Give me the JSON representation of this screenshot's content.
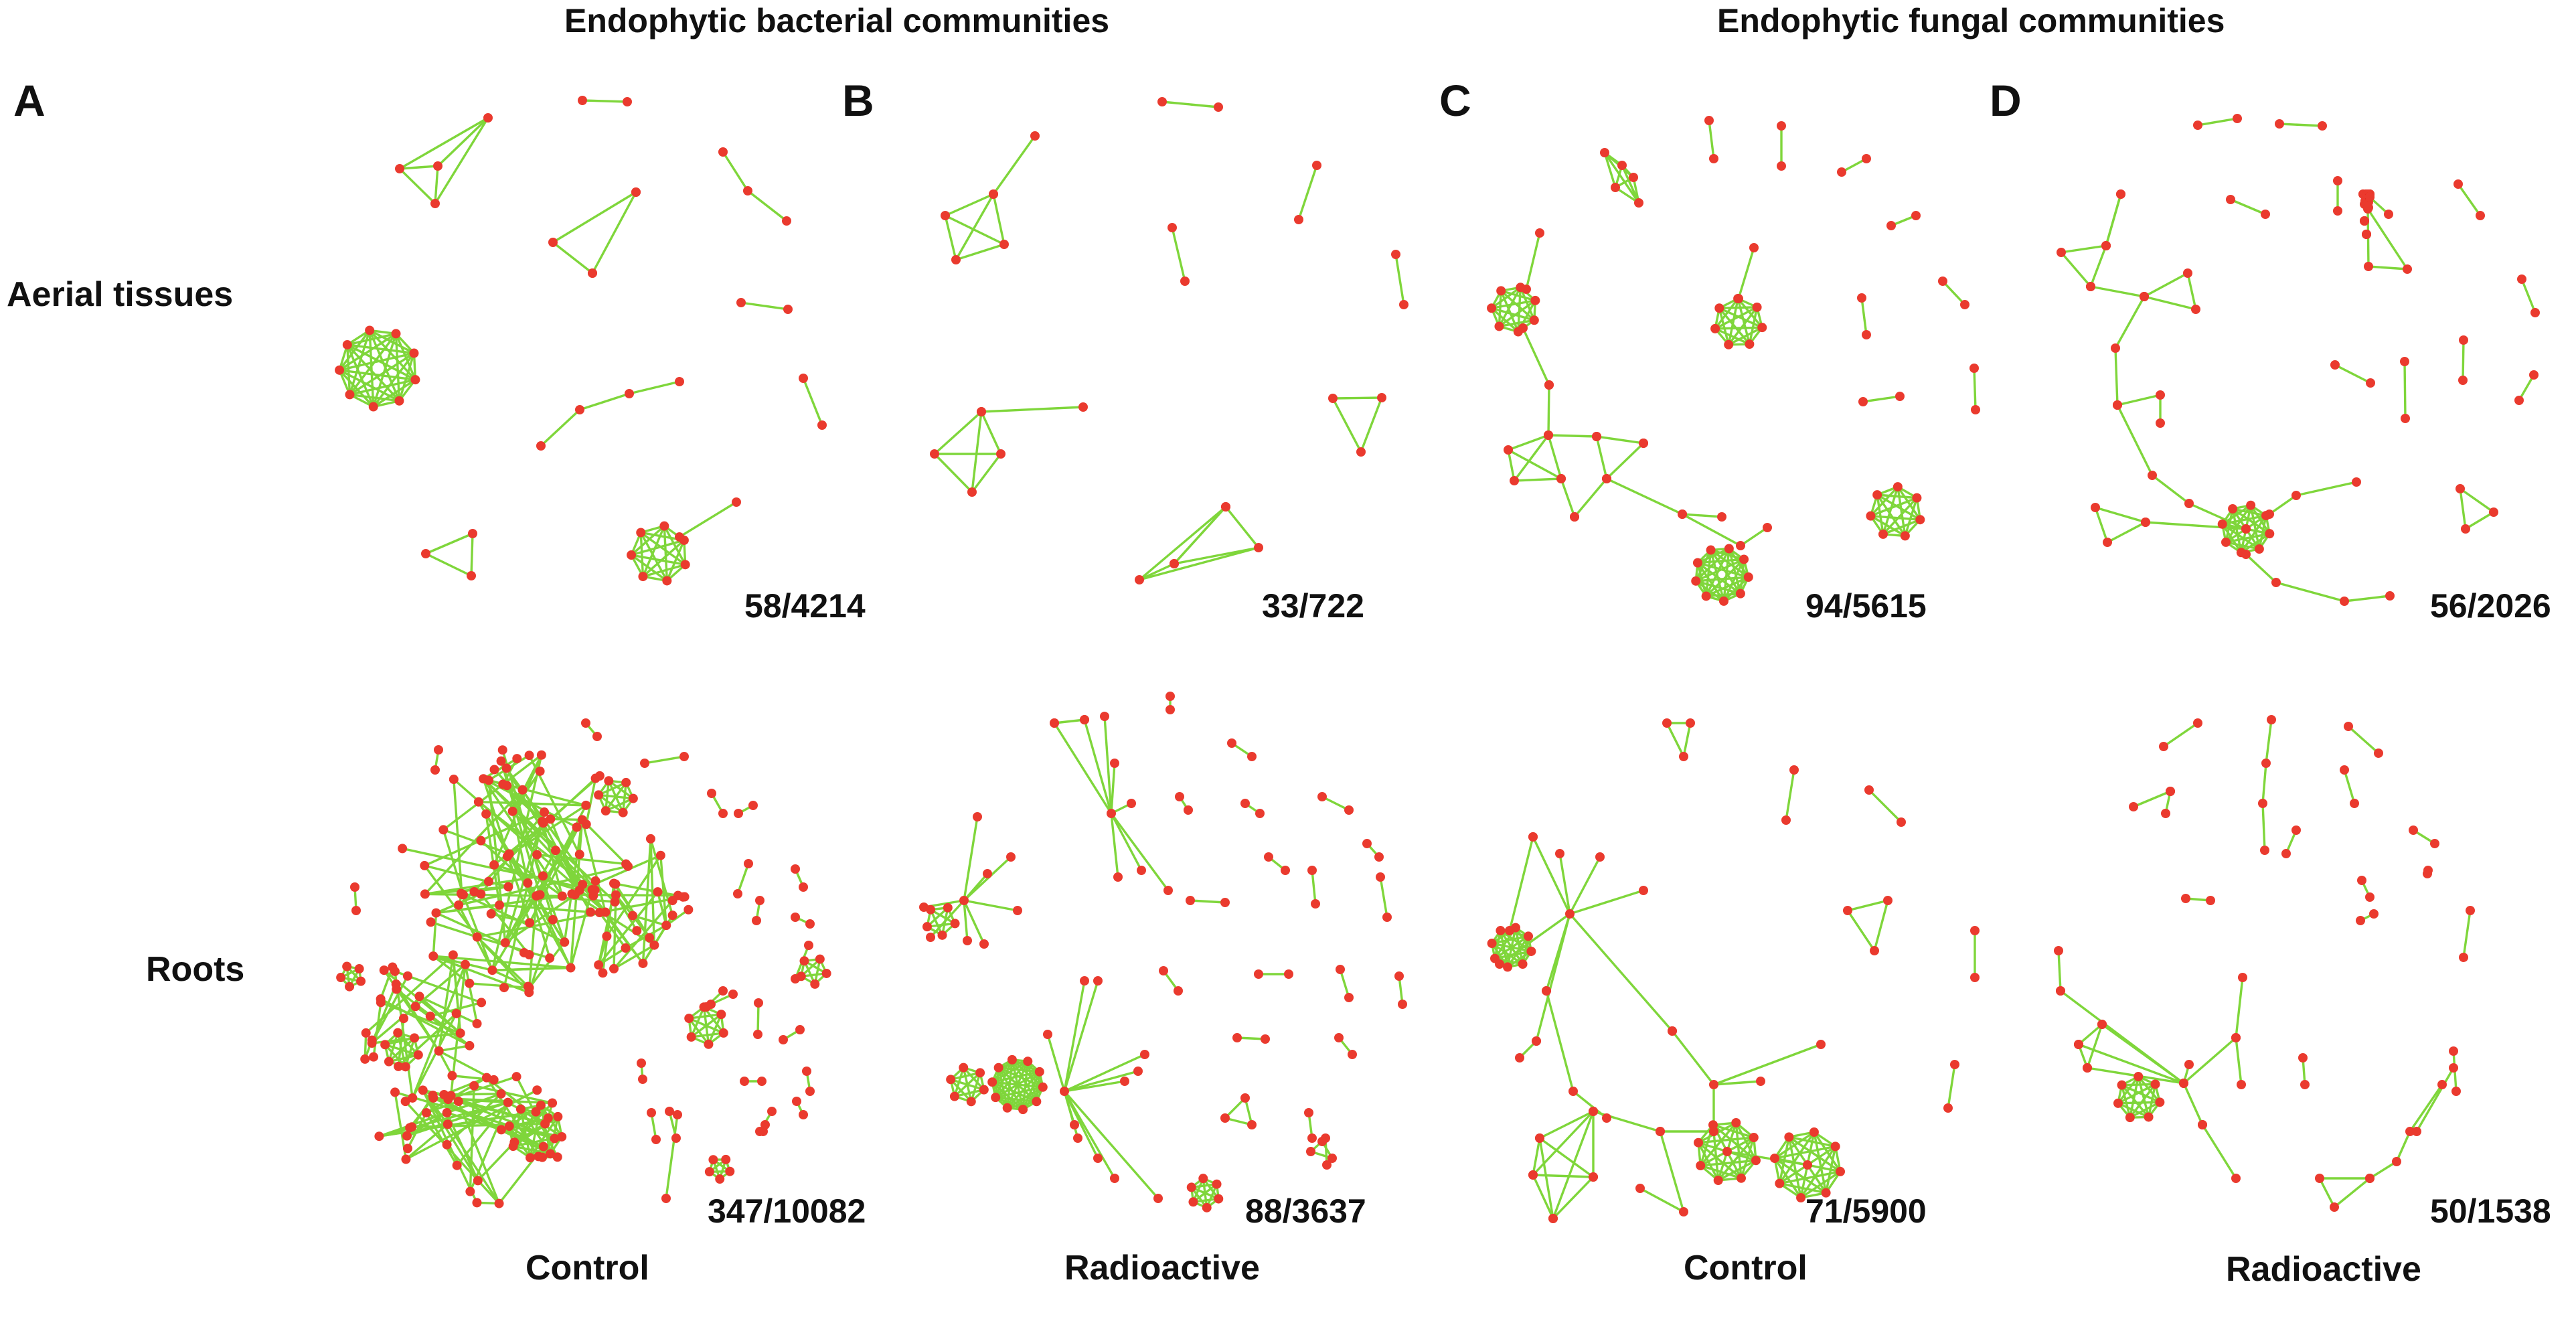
{
  "figure": {
    "groups": {
      "bacterial": "Endophytic bacterial communities",
      "fungal": "Endophytic fungal communities"
    },
    "panels": [
      "A",
      "B",
      "C",
      "D"
    ],
    "rows": {
      "aerial": "Aerial tissues",
      "roots": "Roots"
    },
    "columns": [
      "Control",
      "Radioactive",
      "Control",
      "Radioactive"
    ],
    "counts": {
      "A_aerial": "58/4214",
      "B_aerial": "33/722",
      "C_aerial": "94/5615",
      "D_aerial": "56/2026",
      "A_roots": "347/10082",
      "B_roots": "88/3637",
      "C_roots": "71/5900",
      "D_roots": "50/1538"
    }
  },
  "colors": {
    "edge": "#7fd63b",
    "node": "#ea3a2e",
    "text": "#111111"
  }
}
